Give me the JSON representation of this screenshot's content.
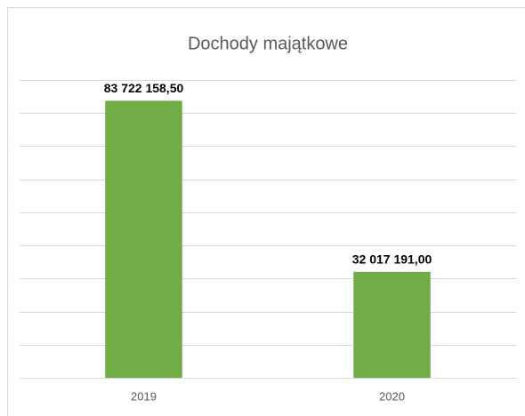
{
  "chart_data": {
    "type": "bar",
    "title": "Dochody majątkowe",
    "categories": [
      "2019",
      "2020"
    ],
    "values": [
      83722158.5,
      32017191
    ],
    "value_labels": [
      "83 722 158,50",
      "32 017 191,00"
    ],
    "color": "#70ad47",
    "ylim": [
      0,
      90000000
    ],
    "yticks": [
      0,
      10000000,
      20000000,
      30000000,
      40000000,
      50000000,
      60000000,
      70000000,
      80000000,
      90000000
    ],
    "grid": true
  }
}
